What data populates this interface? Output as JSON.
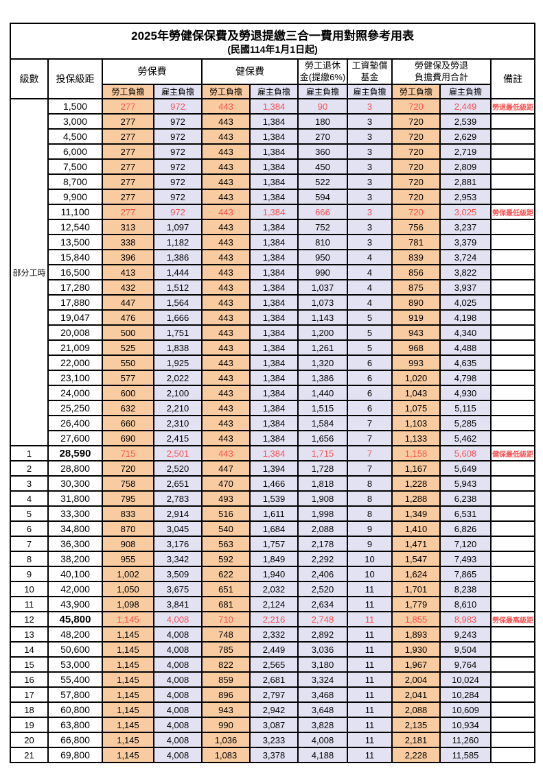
{
  "title": "2025年勞健保保費及勞退提繳三合一費用對照參考用表",
  "subtitle": "(民國114年1月1日起)",
  "colors": {
    "worker_bg": "#F8CBA0",
    "employer_bg": "#E2E2F3",
    "highlight_text": "#FF5050",
    "border": "#000000"
  },
  "header": {
    "level": "級數",
    "bracket": "投保級距",
    "labor_insurance": "勞保費",
    "health_insurance": "健保費",
    "pension_line1": "勞工退休",
    "pension_line2": "金(提繳6%)",
    "wage_fund_line1": "工資墊償",
    "wage_fund_line2": "基金",
    "total_line1": "勞健保及勞退",
    "total_line2": "負擔費用合計",
    "remark": "備註",
    "worker": "勞工負擔",
    "employer": "雇主負擔"
  },
  "part_time": {
    "label": "部分工時",
    "rowspan": 23
  },
  "table": {
    "column_keys": [
      "level",
      "bracket",
      "labor-worker",
      "labor-employer",
      "health-worker",
      "health-employer",
      "pension-employer",
      "wage-fund-employer",
      "total-worker",
      "total-employer",
      "remark"
    ],
    "rows": [
      {
        "level": "",
        "bracket": "1,500",
        "values": [
          "277",
          "972",
          "443",
          "1,384",
          "90",
          "3",
          "720",
          "2,449"
        ],
        "remark": "勞退最低級距",
        "highlight": true,
        "bold": false
      },
      {
        "level": "",
        "bracket": "3,000",
        "values": [
          "277",
          "972",
          "443",
          "1,384",
          "180",
          "3",
          "720",
          "2,539"
        ],
        "remark": "",
        "highlight": false,
        "bold": false
      },
      {
        "level": "",
        "bracket": "4,500",
        "values": [
          "277",
          "972",
          "443",
          "1,384",
          "270",
          "3",
          "720",
          "2,629"
        ],
        "remark": "",
        "highlight": false,
        "bold": false
      },
      {
        "level": "",
        "bracket": "6,000",
        "values": [
          "277",
          "972",
          "443",
          "1,384",
          "360",
          "3",
          "720",
          "2,719"
        ],
        "remark": "",
        "highlight": false,
        "bold": false
      },
      {
        "level": "",
        "bracket": "7,500",
        "values": [
          "277",
          "972",
          "443",
          "1,384",
          "450",
          "3",
          "720",
          "2,809"
        ],
        "remark": "",
        "highlight": false,
        "bold": false
      },
      {
        "level": "",
        "bracket": "8,700",
        "values": [
          "277",
          "972",
          "443",
          "1,384",
          "522",
          "3",
          "720",
          "2,881"
        ],
        "remark": "",
        "highlight": false,
        "bold": false
      },
      {
        "level": "",
        "bracket": "9,900",
        "values": [
          "277",
          "972",
          "443",
          "1,384",
          "594",
          "3",
          "720",
          "2,953"
        ],
        "remark": "",
        "highlight": false,
        "bold": false
      },
      {
        "level": "",
        "bracket": "11,100",
        "values": [
          "277",
          "972",
          "443",
          "1,384",
          "666",
          "3",
          "720",
          "3,025"
        ],
        "remark": "勞保最低級距",
        "highlight": true,
        "bold": false
      },
      {
        "level": "",
        "bracket": "12,540",
        "values": [
          "313",
          "1,097",
          "443",
          "1,384",
          "752",
          "3",
          "756",
          "3,237"
        ],
        "remark": "",
        "highlight": false,
        "bold": false
      },
      {
        "level": "",
        "bracket": "13,500",
        "values": [
          "338",
          "1,182",
          "443",
          "1,384",
          "810",
          "3",
          "781",
          "3,379"
        ],
        "remark": "",
        "highlight": false,
        "bold": false
      },
      {
        "level": "",
        "bracket": "15,840",
        "values": [
          "396",
          "1,386",
          "443",
          "1,384",
          "950",
          "4",
          "839",
          "3,724"
        ],
        "remark": "",
        "highlight": false,
        "bold": false
      },
      {
        "level": "",
        "bracket": "16,500",
        "values": [
          "413",
          "1,444",
          "443",
          "1,384",
          "990",
          "4",
          "856",
          "3,822"
        ],
        "remark": "",
        "highlight": false,
        "bold": false
      },
      {
        "level": "",
        "bracket": "17,280",
        "values": [
          "432",
          "1,512",
          "443",
          "1,384",
          "1,037",
          "4",
          "875",
          "3,937"
        ],
        "remark": "",
        "highlight": false,
        "bold": false
      },
      {
        "level": "",
        "bracket": "17,880",
        "values": [
          "447",
          "1,564",
          "443",
          "1,384",
          "1,073",
          "4",
          "890",
          "4,025"
        ],
        "remark": "",
        "highlight": false,
        "bold": false
      },
      {
        "level": "",
        "bracket": "19,047",
        "values": [
          "476",
          "1,666",
          "443",
          "1,384",
          "1,143",
          "5",
          "919",
          "4,198"
        ],
        "remark": "",
        "highlight": false,
        "bold": false
      },
      {
        "level": "",
        "bracket": "20,008",
        "values": [
          "500",
          "1,751",
          "443",
          "1,384",
          "1,200",
          "5",
          "943",
          "4,340"
        ],
        "remark": "",
        "highlight": false,
        "bold": false
      },
      {
        "level": "",
        "bracket": "21,009",
        "values": [
          "525",
          "1,838",
          "443",
          "1,384",
          "1,261",
          "5",
          "968",
          "4,488"
        ],
        "remark": "",
        "highlight": false,
        "bold": false
      },
      {
        "level": "",
        "bracket": "22,000",
        "values": [
          "550",
          "1,925",
          "443",
          "1,384",
          "1,320",
          "6",
          "993",
          "4,635"
        ],
        "remark": "",
        "highlight": false,
        "bold": false
      },
      {
        "level": "",
        "bracket": "23,100",
        "values": [
          "577",
          "2,022",
          "443",
          "1,384",
          "1,386",
          "6",
          "1,020",
          "4,798"
        ],
        "remark": "",
        "highlight": false,
        "bold": false
      },
      {
        "level": "",
        "bracket": "24,000",
        "values": [
          "600",
          "2,100",
          "443",
          "1,384",
          "1,440",
          "6",
          "1,043",
          "4,930"
        ],
        "remark": "",
        "highlight": false,
        "bold": false
      },
      {
        "level": "",
        "bracket": "25,250",
        "values": [
          "632",
          "2,210",
          "443",
          "1,384",
          "1,515",
          "6",
          "1,075",
          "5,115"
        ],
        "remark": "",
        "highlight": false,
        "bold": false
      },
      {
        "level": "",
        "bracket": "26,400",
        "values": [
          "660",
          "2,310",
          "443",
          "1,384",
          "1,584",
          "7",
          "1,103",
          "5,285"
        ],
        "remark": "",
        "highlight": false,
        "bold": false
      },
      {
        "level": "",
        "bracket": "27,600",
        "values": [
          "690",
          "2,415",
          "443",
          "1,384",
          "1,656",
          "7",
          "1,133",
          "5,462"
        ],
        "remark": "",
        "highlight": false,
        "bold": false
      },
      {
        "level": "1",
        "bracket": "28,590",
        "values": [
          "715",
          "2,501",
          "443",
          "1,384",
          "1,715",
          "7",
          "1,158",
          "5,608"
        ],
        "remark": "健保最低級距",
        "highlight": true,
        "bold": true
      },
      {
        "level": "2",
        "bracket": "28,800",
        "values": [
          "720",
          "2,520",
          "447",
          "1,394",
          "1,728",
          "7",
          "1,167",
          "5,649"
        ],
        "remark": "",
        "highlight": false,
        "bold": false
      },
      {
        "level": "3",
        "bracket": "30,300",
        "values": [
          "758",
          "2,651",
          "470",
          "1,466",
          "1,818",
          "8",
          "1,228",
          "5,943"
        ],
        "remark": "",
        "highlight": false,
        "bold": false
      },
      {
        "level": "4",
        "bracket": "31,800",
        "values": [
          "795",
          "2,783",
          "493",
          "1,539",
          "1,908",
          "8",
          "1,288",
          "6,238"
        ],
        "remark": "",
        "highlight": false,
        "bold": false
      },
      {
        "level": "5",
        "bracket": "33,300",
        "values": [
          "833",
          "2,914",
          "516",
          "1,611",
          "1,998",
          "8",
          "1,349",
          "6,531"
        ],
        "remark": "",
        "highlight": false,
        "bold": false
      },
      {
        "level": "6",
        "bracket": "34,800",
        "values": [
          "870",
          "3,045",
          "540",
          "1,684",
          "2,088",
          "9",
          "1,410",
          "6,826"
        ],
        "remark": "",
        "highlight": false,
        "bold": false
      },
      {
        "level": "7",
        "bracket": "36,300",
        "values": [
          "908",
          "3,176",
          "563",
          "1,757",
          "2,178",
          "9",
          "1,471",
          "7,120"
        ],
        "remark": "",
        "highlight": false,
        "bold": false
      },
      {
        "level": "8",
        "bracket": "38,200",
        "values": [
          "955",
          "3,342",
          "592",
          "1,849",
          "2,292",
          "10",
          "1,547",
          "7,493"
        ],
        "remark": "",
        "highlight": false,
        "bold": false
      },
      {
        "level": "9",
        "bracket": "40,100",
        "values": [
          "1,002",
          "3,509",
          "622",
          "1,940",
          "2,406",
          "10",
          "1,624",
          "7,865"
        ],
        "remark": "",
        "highlight": false,
        "bold": false
      },
      {
        "level": "10",
        "bracket": "42,000",
        "values": [
          "1,050",
          "3,675",
          "651",
          "2,032",
          "2,520",
          "11",
          "1,701",
          "8,238"
        ],
        "remark": "",
        "highlight": false,
        "bold": false
      },
      {
        "level": "11",
        "bracket": "43,900",
        "values": [
          "1,098",
          "3,841",
          "681",
          "2,124",
          "2,634",
          "11",
          "1,779",
          "8,610"
        ],
        "remark": "",
        "highlight": false,
        "bold": false
      },
      {
        "level": "12",
        "bracket": "45,800",
        "values": [
          "1,145",
          "4,008",
          "710",
          "2,216",
          "2,748",
          "11",
          "1,855",
          "8,983"
        ],
        "remark": "勞保最高級距",
        "highlight": true,
        "bold": true
      },
      {
        "level": "13",
        "bracket": "48,200",
        "values": [
          "1,145",
          "4,008",
          "748",
          "2,332",
          "2,892",
          "11",
          "1,893",
          "9,243"
        ],
        "remark": "",
        "highlight": false,
        "bold": false
      },
      {
        "level": "14",
        "bracket": "50,600",
        "values": [
          "1,145",
          "4,008",
          "785",
          "2,449",
          "3,036",
          "11",
          "1,930",
          "9,504"
        ],
        "remark": "",
        "highlight": false,
        "bold": false
      },
      {
        "level": "15",
        "bracket": "53,000",
        "values": [
          "1,145",
          "4,008",
          "822",
          "2,565",
          "3,180",
          "11",
          "1,967",
          "9,764"
        ],
        "remark": "",
        "highlight": false,
        "bold": false
      },
      {
        "level": "16",
        "bracket": "55,400",
        "values": [
          "1,145",
          "4,008",
          "859",
          "2,681",
          "3,324",
          "11",
          "2,004",
          "10,024"
        ],
        "remark": "",
        "highlight": false,
        "bold": false
      },
      {
        "level": "17",
        "bracket": "57,800",
        "values": [
          "1,145",
          "4,008",
          "896",
          "2,797",
          "3,468",
          "11",
          "2,041",
          "10,284"
        ],
        "remark": "",
        "highlight": false,
        "bold": false
      },
      {
        "level": "18",
        "bracket": "60,800",
        "values": [
          "1,145",
          "4,008",
          "943",
          "2,942",
          "3,648",
          "11",
          "2,088",
          "10,609"
        ],
        "remark": "",
        "highlight": false,
        "bold": false
      },
      {
        "level": "19",
        "bracket": "63,800",
        "values": [
          "1,145",
          "4,008",
          "990",
          "3,087",
          "3,828",
          "11",
          "2,135",
          "10,934"
        ],
        "remark": "",
        "highlight": false,
        "bold": false
      },
      {
        "level": "20",
        "bracket": "66,800",
        "values": [
          "1,145",
          "4,008",
          "1,036",
          "3,233",
          "4,008",
          "11",
          "2,181",
          "11,260"
        ],
        "remark": "",
        "highlight": false,
        "bold": false
      },
      {
        "level": "21",
        "bracket": "69,800",
        "values": [
          "1,145",
          "4,008",
          "1,083",
          "3,378",
          "4,188",
          "11",
          "2,228",
          "11,585"
        ],
        "remark": "",
        "highlight": false,
        "bold": false
      }
    ]
  }
}
